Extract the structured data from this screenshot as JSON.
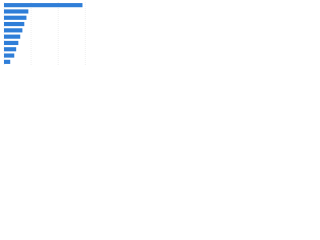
{
  "chart_data": {
    "type": "bar",
    "orientation": "horizontal",
    "categories": [
      null,
      null,
      null,
      null,
      null,
      null,
      null,
      null,
      null,
      null
    ],
    "values": [
      29,
      9,
      8.3,
      7.5,
      6.8,
      6,
      5.3,
      4.5,
      3.8,
      2.3
    ],
    "color": "#2f7ed8",
    "xlim": [
      0,
      34
    ],
    "xticks": [
      0,
      10,
      20,
      30
    ],
    "grid": true
  }
}
